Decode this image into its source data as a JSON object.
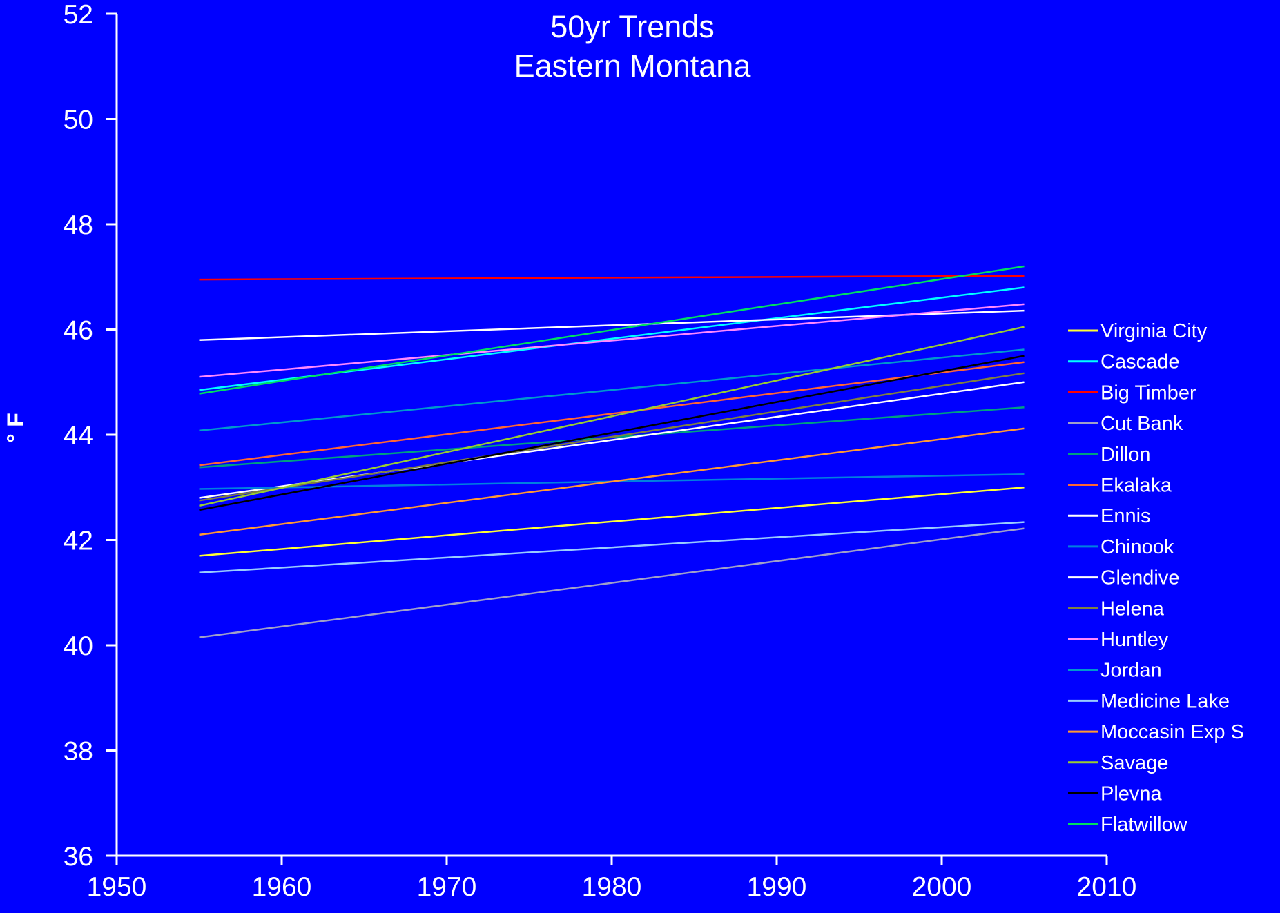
{
  "chart_data": {
    "type": "line",
    "title_lines": [
      "50yr Trends",
      "Eastern Montana"
    ],
    "xlabel": "",
    "ylabel": "° F",
    "xlim": [
      1950,
      2010
    ],
    "ylim": [
      36,
      52
    ],
    "x_ticks": [
      "1950",
      "1960",
      "1970",
      "1980",
      "1990",
      "2000",
      "2010"
    ],
    "y_ticks": [
      "36",
      "38",
      "40",
      "42",
      "44",
      "46",
      "48",
      "50",
      "52"
    ],
    "background": "#0000FF",
    "axis_color": "#FFFFFF",
    "grid": false,
    "legend_position": "right",
    "series": [
      {
        "name": "Virginia City",
        "color": "#FFFF33",
        "x": [
          1955,
          2005
        ],
        "y": [
          41.7,
          43.0
        ]
      },
      {
        "name": "Cascade",
        "color": "#00FFFF",
        "x": [
          1955,
          2005
        ],
        "y": [
          44.85,
          46.8
        ]
      },
      {
        "name": "Big Timber",
        "color": "#FF0000",
        "x": [
          1955,
          2005
        ],
        "y": [
          46.95,
          47.02
        ]
      },
      {
        "name": "Cut Bank",
        "color": "#A0A0C8",
        "x": [
          1955,
          2005
        ],
        "y": [
          40.15,
          42.22
        ]
      },
      {
        "name": "Dillon",
        "color": "#00A080",
        "x": [
          1955,
          2005
        ],
        "y": [
          43.38,
          44.52
        ]
      },
      {
        "name": "Ekalaka",
        "color": "#FF6633",
        "x": [
          1955,
          2005
        ],
        "y": [
          43.42,
          45.38
        ]
      },
      {
        "name": "Ennis",
        "color": "#FFFFFF",
        "x": [
          1955,
          2005
        ],
        "y": [
          42.8,
          45.0
        ]
      },
      {
        "name": "Chinook",
        "color": "#0080E0",
        "x": [
          1955,
          2005
        ],
        "y": [
          42.97,
          43.25
        ]
      },
      {
        "name": "Glendive",
        "color": "#FFFFFF",
        "x": [
          1955,
          2005
        ],
        "y": [
          45.8,
          46.36
        ]
      },
      {
        "name": "Helena",
        "color": "#808040",
        "x": [
          1955,
          2005
        ],
        "y": [
          42.75,
          45.17
        ]
      },
      {
        "name": "Huntley",
        "color": "#FF88FF",
        "x": [
          1955,
          2005
        ],
        "y": [
          45.1,
          46.48
        ]
      },
      {
        "name": "Jordan",
        "color": "#0099CC",
        "x": [
          1955,
          2005
        ],
        "y": [
          44.08,
          45.62
        ]
      },
      {
        "name": "Medicine Lake",
        "color": "#99CCFF",
        "x": [
          1955,
          2005
        ],
        "y": [
          41.38,
          42.34
        ]
      },
      {
        "name": "Moccasin Exp S",
        "color": "#FF9933",
        "x": [
          1955,
          2005
        ],
        "y": [
          42.1,
          44.12
        ]
      },
      {
        "name": "Savage",
        "color": "#99CC33",
        "x": [
          1955,
          2005
        ],
        "y": [
          42.65,
          46.05
        ]
      },
      {
        "name": "Plevna",
        "color": "#000000",
        "x": [
          1955,
          2005
        ],
        "y": [
          42.57,
          45.5
        ]
      },
      {
        "name": "Flatwillow",
        "color": "#00E060",
        "x": [
          1955,
          2005
        ],
        "y": [
          44.78,
          47.2
        ]
      }
    ]
  }
}
